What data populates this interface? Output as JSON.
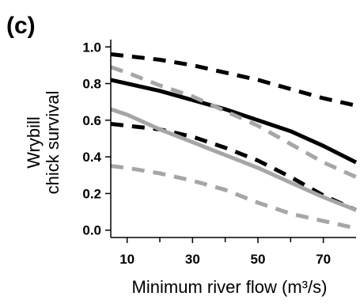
{
  "panel_label": "(c)",
  "chart_data": {
    "type": "line",
    "ylabel_line1": "Wrybill",
    "ylabel_line2": "chick survival",
    "xlabel": "Minimum river flow (m³/s)",
    "xlim": [
      5,
      80
    ],
    "ylim": [
      -0.04,
      1.04
    ],
    "xticks": [
      10,
      30,
      50,
      70
    ],
    "xtick_labels": [
      "10",
      "30",
      "50",
      "70"
    ],
    "yticks": [
      0.0,
      0.2,
      0.4,
      0.6,
      0.8,
      1.0
    ],
    "ytick_labels": [
      "0.0",
      "0.2",
      "0.4",
      "0.6",
      "0.8",
      "1.0"
    ],
    "x": [
      5,
      10,
      20,
      30,
      40,
      50,
      60,
      70,
      80
    ],
    "series": [
      {
        "color": "#000000",
        "style": "solid",
        "values": [
          0.82,
          0.8,
          0.76,
          0.71,
          0.66,
          0.6,
          0.54,
          0.46,
          0.37
        ]
      },
      {
        "color": "#000000",
        "style": "dashed",
        "values": [
          0.96,
          0.95,
          0.93,
          0.9,
          0.86,
          0.82,
          0.77,
          0.72,
          0.68
        ]
      },
      {
        "color": "#000000",
        "style": "dashed",
        "values": [
          0.58,
          0.57,
          0.55,
          0.51,
          0.45,
          0.38,
          0.29,
          0.19,
          0.11
        ]
      },
      {
        "color": "#a6a6a6",
        "style": "solid",
        "values": [
          0.66,
          0.63,
          0.55,
          0.48,
          0.41,
          0.34,
          0.26,
          0.18,
          0.11
        ]
      },
      {
        "color": "#a6a6a6",
        "style": "dashed",
        "values": [
          0.89,
          0.86,
          0.79,
          0.73,
          0.65,
          0.57,
          0.47,
          0.37,
          0.29
        ]
      },
      {
        "color": "#a6a6a6",
        "style": "dashed",
        "values": [
          0.35,
          0.34,
          0.31,
          0.27,
          0.22,
          0.15,
          0.09,
          0.05,
          0.01
        ]
      }
    ]
  }
}
